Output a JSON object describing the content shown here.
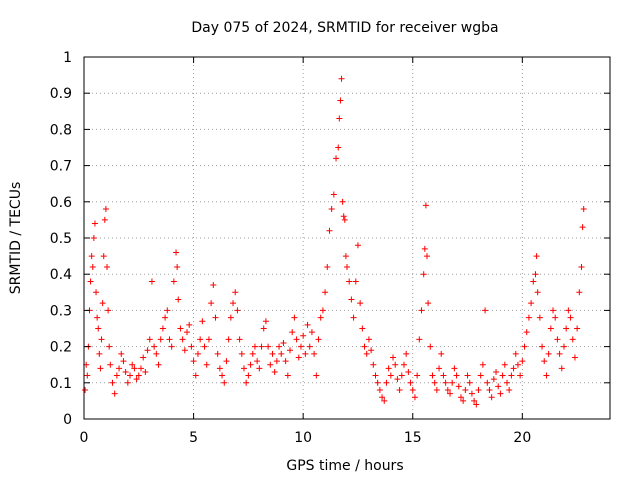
{
  "chart_data": {
    "type": "scatter",
    "title": "Day 075 of 2024, SRMTID for receiver wgba",
    "xlabel": "GPS time / hours",
    "ylabel": "SRMTID / TECUs",
    "xlim": [
      0,
      24
    ],
    "ylim": [
      0,
      1
    ],
    "xticks": [
      0,
      5,
      10,
      15,
      20
    ],
    "yticks": [
      0,
      0.1,
      0.2,
      0.3,
      0.4,
      0.5,
      0.6,
      0.7,
      0.8,
      0.9,
      1
    ],
    "xtick_labels": [
      "0",
      "5",
      "10",
      "15",
      "20"
    ],
    "ytick_labels": [
      "0",
      "0.1",
      "0.2",
      "0.3",
      "0.4",
      "0.5",
      "0.6",
      "0.7",
      "0.8",
      "0.9",
      "1"
    ],
    "grid": true,
    "marker": "+",
    "color": "#ff0000",
    "series": [
      {
        "name": "SRMTID",
        "points": [
          [
            0.05,
            0.08
          ],
          [
            0.1,
            0.15
          ],
          [
            0.15,
            0.12
          ],
          [
            0.2,
            0.2
          ],
          [
            0.25,
            0.3
          ],
          [
            0.3,
            0.38
          ],
          [
            0.35,
            0.45
          ],
          [
            0.4,
            0.42
          ],
          [
            0.45,
            0.5
          ],
          [
            0.5,
            0.54
          ],
          [
            0.55,
            0.35
          ],
          [
            0.6,
            0.28
          ],
          [
            0.65,
            0.25
          ],
          [
            0.7,
            0.18
          ],
          [
            0.75,
            0.14
          ],
          [
            0.8,
            0.22
          ],
          [
            0.85,
            0.32
          ],
          [
            0.9,
            0.45
          ],
          [
            0.95,
            0.55
          ],
          [
            1.0,
            0.58
          ],
          [
            1.05,
            0.42
          ],
          [
            1.1,
            0.3
          ],
          [
            1.15,
            0.2
          ],
          [
            1.2,
            0.15
          ],
          [
            1.3,
            0.1
          ],
          [
            1.4,
            0.07
          ],
          [
            1.5,
            0.12
          ],
          [
            1.6,
            0.14
          ],
          [
            1.7,
            0.18
          ],
          [
            1.8,
            0.16
          ],
          [
            1.9,
            0.13
          ],
          [
            2.0,
            0.1
          ],
          [
            2.1,
            0.12
          ],
          [
            2.2,
            0.15
          ],
          [
            2.3,
            0.14
          ],
          [
            2.4,
            0.11
          ],
          [
            2.5,
            0.12
          ],
          [
            2.6,
            0.14
          ],
          [
            2.7,
            0.17
          ],
          [
            2.8,
            0.13
          ],
          [
            2.9,
            0.19
          ],
          [
            3.0,
            0.22
          ],
          [
            3.1,
            0.38
          ],
          [
            3.2,
            0.2
          ],
          [
            3.3,
            0.18
          ],
          [
            3.4,
            0.15
          ],
          [
            3.5,
            0.22
          ],
          [
            3.6,
            0.25
          ],
          [
            3.7,
            0.28
          ],
          [
            3.8,
            0.3
          ],
          [
            3.9,
            0.22
          ],
          [
            4.0,
            0.2
          ],
          [
            4.1,
            0.38
          ],
          [
            4.2,
            0.46
          ],
          [
            4.25,
            0.42
          ],
          [
            4.3,
            0.33
          ],
          [
            4.4,
            0.25
          ],
          [
            4.5,
            0.22
          ],
          [
            4.6,
            0.19
          ],
          [
            4.7,
            0.24
          ],
          [
            4.8,
            0.26
          ],
          [
            4.9,
            0.2
          ],
          [
            5.0,
            0.16
          ],
          [
            5.1,
            0.12
          ],
          [
            5.2,
            0.18
          ],
          [
            5.3,
            0.22
          ],
          [
            5.4,
            0.27
          ],
          [
            5.5,
            0.2
          ],
          [
            5.6,
            0.15
          ],
          [
            5.7,
            0.22
          ],
          [
            5.8,
            0.32
          ],
          [
            5.9,
            0.37
          ],
          [
            6.0,
            0.28
          ],
          [
            6.1,
            0.18
          ],
          [
            6.2,
            0.14
          ],
          [
            6.3,
            0.12
          ],
          [
            6.4,
            0.1
          ],
          [
            6.5,
            0.16
          ],
          [
            6.6,
            0.22
          ],
          [
            6.7,
            0.28
          ],
          [
            6.8,
            0.32
          ],
          [
            6.9,
            0.35
          ],
          [
            7.0,
            0.3
          ],
          [
            7.1,
            0.22
          ],
          [
            7.2,
            0.18
          ],
          [
            7.3,
            0.14
          ],
          [
            7.4,
            0.1
          ],
          [
            7.5,
            0.12
          ],
          [
            7.6,
            0.15
          ],
          [
            7.7,
            0.18
          ],
          [
            7.8,
            0.2
          ],
          [
            7.9,
            0.16
          ],
          [
            8.0,
            0.14
          ],
          [
            8.1,
            0.2
          ],
          [
            8.2,
            0.25
          ],
          [
            8.3,
            0.27
          ],
          [
            8.4,
            0.2
          ],
          [
            8.5,
            0.15
          ],
          [
            8.6,
            0.18
          ],
          [
            8.7,
            0.13
          ],
          [
            8.8,
            0.16
          ],
          [
            8.9,
            0.2
          ],
          [
            9.0,
            0.18
          ],
          [
            9.1,
            0.21
          ],
          [
            9.2,
            0.16
          ],
          [
            9.3,
            0.12
          ],
          [
            9.4,
            0.19
          ],
          [
            9.5,
            0.24
          ],
          [
            9.6,
            0.28
          ],
          [
            9.7,
            0.22
          ],
          [
            9.8,
            0.17
          ],
          [
            9.9,
            0.2
          ],
          [
            10.0,
            0.23
          ],
          [
            10.1,
            0.18
          ],
          [
            10.2,
            0.26
          ],
          [
            10.3,
            0.2
          ],
          [
            10.4,
            0.24
          ],
          [
            10.5,
            0.18
          ],
          [
            10.6,
            0.12
          ],
          [
            10.7,
            0.22
          ],
          [
            10.8,
            0.28
          ],
          [
            10.9,
            0.3
          ],
          [
            11.0,
            0.35
          ],
          [
            11.1,
            0.42
          ],
          [
            11.2,
            0.52
          ],
          [
            11.3,
            0.58
          ],
          [
            11.4,
            0.62
          ],
          [
            11.5,
            0.72
          ],
          [
            11.6,
            0.75
          ],
          [
            11.65,
            0.83
          ],
          [
            11.7,
            0.88
          ],
          [
            11.75,
            0.94
          ],
          [
            11.8,
            0.6
          ],
          [
            11.85,
            0.56
          ],
          [
            11.9,
            0.55
          ],
          [
            11.95,
            0.45
          ],
          [
            12.0,
            0.42
          ],
          [
            12.1,
            0.38
          ],
          [
            12.2,
            0.33
          ],
          [
            12.3,
            0.28
          ],
          [
            12.4,
            0.38
          ],
          [
            12.5,
            0.48
          ],
          [
            12.6,
            0.32
          ],
          [
            12.7,
            0.25
          ],
          [
            12.8,
            0.2
          ],
          [
            12.9,
            0.18
          ],
          [
            13.0,
            0.22
          ],
          [
            13.1,
            0.19
          ],
          [
            13.2,
            0.15
          ],
          [
            13.3,
            0.12
          ],
          [
            13.4,
            0.1
          ],
          [
            13.5,
            0.08
          ],
          [
            13.6,
            0.06
          ],
          [
            13.7,
            0.05
          ],
          [
            13.8,
            0.1
          ],
          [
            13.9,
            0.14
          ],
          [
            14.0,
            0.12
          ],
          [
            14.1,
            0.17
          ],
          [
            14.2,
            0.15
          ],
          [
            14.3,
            0.11
          ],
          [
            14.4,
            0.08
          ],
          [
            14.5,
            0.12
          ],
          [
            14.6,
            0.15
          ],
          [
            14.7,
            0.18
          ],
          [
            14.8,
            0.13
          ],
          [
            14.9,
            0.1
          ],
          [
            15.0,
            0.08
          ],
          [
            15.1,
            0.06
          ],
          [
            15.2,
            0.12
          ],
          [
            15.3,
            0.22
          ],
          [
            15.4,
            0.3
          ],
          [
            15.5,
            0.4
          ],
          [
            15.55,
            0.47
          ],
          [
            15.6,
            0.59
          ],
          [
            15.65,
            0.45
          ],
          [
            15.7,
            0.32
          ],
          [
            15.8,
            0.2
          ],
          [
            15.9,
            0.12
          ],
          [
            16.0,
            0.1
          ],
          [
            16.1,
            0.08
          ],
          [
            16.2,
            0.14
          ],
          [
            16.3,
            0.18
          ],
          [
            16.4,
            0.12
          ],
          [
            16.5,
            0.1
          ],
          [
            16.6,
            0.08
          ],
          [
            16.7,
            0.07
          ],
          [
            16.8,
            0.1
          ],
          [
            16.9,
            0.14
          ],
          [
            17.0,
            0.12
          ],
          [
            17.1,
            0.09
          ],
          [
            17.2,
            0.06
          ],
          [
            17.3,
            0.05
          ],
          [
            17.4,
            0.08
          ],
          [
            17.5,
            0.12
          ],
          [
            17.6,
            0.1
          ],
          [
            17.7,
            0.07
          ],
          [
            17.8,
            0.05
          ],
          [
            17.9,
            0.04
          ],
          [
            18.0,
            0.08
          ],
          [
            18.1,
            0.12
          ],
          [
            18.2,
            0.15
          ],
          [
            18.3,
            0.3
          ],
          [
            18.4,
            0.1
          ],
          [
            18.5,
            0.08
          ],
          [
            18.6,
            0.06
          ],
          [
            18.7,
            0.11
          ],
          [
            18.8,
            0.13
          ],
          [
            18.9,
            0.09
          ],
          [
            19.0,
            0.07
          ],
          [
            19.1,
            0.12
          ],
          [
            19.2,
            0.15
          ],
          [
            19.3,
            0.1
          ],
          [
            19.4,
            0.08
          ],
          [
            19.5,
            0.12
          ],
          [
            19.6,
            0.14
          ],
          [
            19.7,
            0.18
          ],
          [
            19.8,
            0.15
          ],
          [
            19.9,
            0.12
          ],
          [
            20.0,
            0.16
          ],
          [
            20.1,
            0.2
          ],
          [
            20.2,
            0.24
          ],
          [
            20.3,
            0.28
          ],
          [
            20.4,
            0.32
          ],
          [
            20.5,
            0.38
          ],
          [
            20.6,
            0.4
          ],
          [
            20.65,
            0.45
          ],
          [
            20.7,
            0.35
          ],
          [
            20.8,
            0.28
          ],
          [
            20.9,
            0.2
          ],
          [
            21.0,
            0.16
          ],
          [
            21.1,
            0.12
          ],
          [
            21.2,
            0.18
          ],
          [
            21.3,
            0.25
          ],
          [
            21.4,
            0.3
          ],
          [
            21.5,
            0.28
          ],
          [
            21.6,
            0.22
          ],
          [
            21.7,
            0.18
          ],
          [
            21.8,
            0.14
          ],
          [
            21.9,
            0.2
          ],
          [
            22.0,
            0.25
          ],
          [
            22.1,
            0.3
          ],
          [
            22.2,
            0.28
          ],
          [
            22.3,
            0.22
          ],
          [
            22.4,
            0.17
          ],
          [
            22.5,
            0.25
          ],
          [
            22.6,
            0.35
          ],
          [
            22.7,
            0.42
          ],
          [
            22.75,
            0.53
          ],
          [
            22.8,
            0.58
          ]
        ]
      }
    ]
  }
}
